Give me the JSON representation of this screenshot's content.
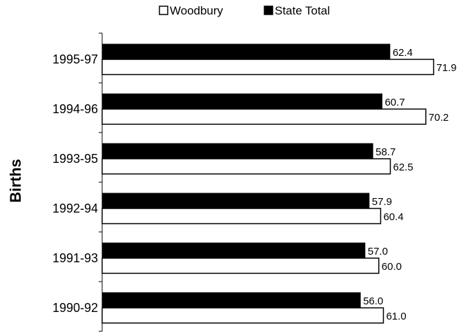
{
  "chart_data": {
    "type": "bar",
    "orientation": "horizontal",
    "title": "",
    "xlabel": "",
    "ylabel": "Births",
    "categories": [
      "1995-97",
      "1994-96",
      "1993-95",
      "1992-94",
      "1991-93",
      "1990-92"
    ],
    "series": [
      {
        "name": "Woodbury",
        "color": "#ffffff",
        "values": [
          71.9,
          70.2,
          62.5,
          60.4,
          60.0,
          61.0
        ],
        "labels": [
          "71.9",
          "70.2",
          "62.5",
          "60.4",
          "60.0",
          "61.0"
        ]
      },
      {
        "name": "State Total",
        "color": "#000000",
        "values": [
          62.4,
          60.7,
          58.7,
          57.9,
          57.0,
          56.0
        ],
        "labels": [
          "62.4",
          "60.7",
          "58.7",
          "57.9",
          "57.0",
          "56.0"
        ]
      }
    ],
    "xlim": [
      0,
      82
    ],
    "legend_position": "top-center",
    "grid": false
  }
}
